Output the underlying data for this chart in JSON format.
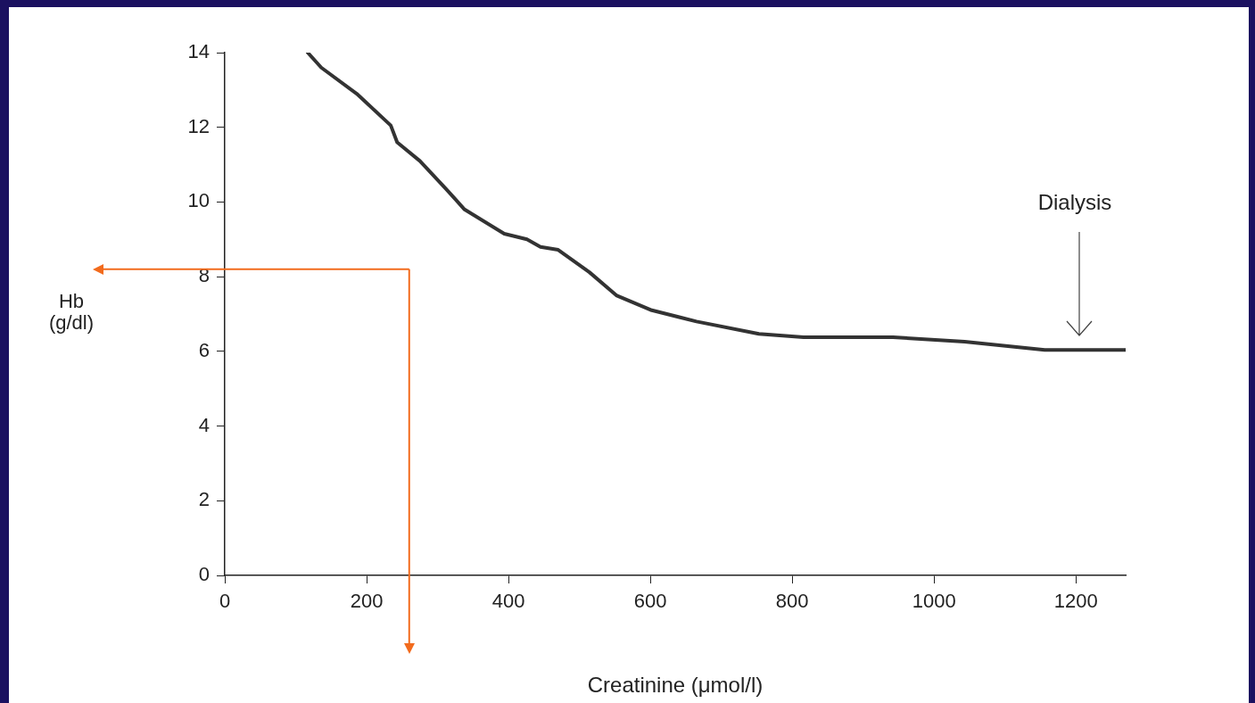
{
  "chart_data": {
    "type": "line",
    "xlabel": "Creatinine (μmol/l)",
    "ylabel": "Hb (g/dl)",
    "x": [
      117,
      136,
      186,
      234,
      243,
      275,
      312,
      338,
      394,
      426,
      445,
      470,
      514,
      552,
      602,
      665,
      753,
      816,
      942,
      1043,
      1156,
      1270
    ],
    "series": [
      {
        "color": "#333333",
        "values": [
          14.0,
          13.6,
          12.9,
          12.05,
          11.6,
          11.1,
          10.35,
          9.8,
          9.15,
          9.0,
          8.8,
          8.72,
          8.12,
          7.5,
          7.1,
          6.8,
          6.47,
          6.38,
          6.38,
          6.26,
          6.04,
          6.04
        ]
      }
    ],
    "xlim": [
      0,
      1270
    ],
    "xticks": [
      0,
      200,
      400,
      600,
      800,
      1000,
      1200
    ],
    "ylim": [
      0,
      14
    ],
    "yticks": [
      0,
      2,
      4,
      6,
      8,
      10,
      12,
      14
    ],
    "grid": false,
    "legend": false,
    "marker": "none",
    "line_style": "solid",
    "ref_lines": [
      {
        "axis": "y",
        "value": 8.2,
        "color": "#f26b1d"
      },
      {
        "axis": "x",
        "value": 260,
        "color": "#f26b1d"
      }
    ],
    "annotations": [
      "Dialysis"
    ]
  }
}
